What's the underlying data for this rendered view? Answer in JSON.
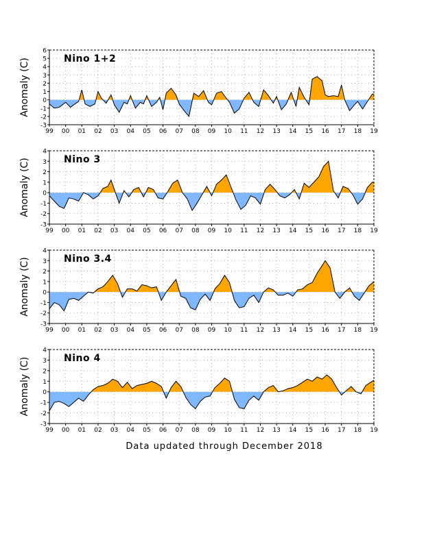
{
  "footer": "Data updated through December 2018",
  "colors": {
    "positive": "#ffa500",
    "negative": "#80b8ff",
    "line": "#000000",
    "grid": "#9a9a9a"
  },
  "chart_data": [
    {
      "type": "area",
      "title": "Nino 1+2",
      "ylabel": "Anomaly (C)",
      "xlabel": "",
      "ylim": [
        -3,
        6
      ],
      "yticks": [
        -3,
        -2,
        -1,
        0,
        1,
        2,
        3,
        4,
        5,
        6
      ],
      "xlim": [
        1999,
        2019
      ],
      "xticks": [
        "99",
        "00",
        "01",
        "02",
        "03",
        "04",
        "05",
        "06",
        "07",
        "08",
        "09",
        "10",
        "11",
        "12",
        "13",
        "14",
        "15",
        "16",
        "17",
        "18",
        "19"
      ],
      "grid": true,
      "x": [
        1999.0,
        1999.3,
        1999.6,
        2000.0,
        2000.3,
        2000.5,
        2000.8,
        2001.0,
        2001.2,
        2001.5,
        2001.8,
        2002.0,
        2002.2,
        2002.5,
        2002.8,
        2003.0,
        2003.3,
        2003.6,
        2003.8,
        2004.0,
        2004.3,
        2004.6,
        2004.8,
        2005.0,
        2005.3,
        2005.6,
        2005.8,
        2006.0,
        2006.2,
        2006.5,
        2006.8,
        2007.0,
        2007.3,
        2007.6,
        2007.9,
        2008.2,
        2008.5,
        2008.8,
        2009.0,
        2009.3,
        2009.6,
        2009.9,
        2010.1,
        2010.4,
        2010.7,
        2011.0,
        2011.3,
        2011.6,
        2011.9,
        2012.2,
        2012.5,
        2012.8,
        2013.0,
        2013.3,
        2013.6,
        2013.9,
        2014.2,
        2014.4,
        2014.7,
        2015.0,
        2015.2,
        2015.5,
        2015.8,
        2016.0,
        2016.2,
        2016.5,
        2016.8,
        2017.0,
        2017.2,
        2017.5,
        2017.8,
        2018.0,
        2018.3,
        2018.6,
        2018.9,
        2019.0
      ],
      "values": [
        -0.5,
        -1.0,
        -0.9,
        -0.3,
        -0.9,
        -0.6,
        -0.2,
        1.2,
        -0.5,
        -0.8,
        -0.5,
        1.0,
        0.2,
        -0.4,
        0.6,
        -0.6,
        -1.5,
        -0.3,
        -0.5,
        0.5,
        -1.0,
        -0.3,
        -0.5,
        0.5,
        -0.8,
        -0.3,
        0.3,
        -1.2,
        0.8,
        1.4,
        0.6,
        -0.5,
        -1.3,
        -2.0,
        0.8,
        0.4,
        1.1,
        -0.3,
        -0.6,
        0.8,
        1.0,
        0.2,
        -0.3,
        -1.6,
        -1.1,
        0.2,
        0.9,
        -0.3,
        -0.8,
        1.2,
        0.5,
        -0.4,
        0.4,
        -1.2,
        -0.5,
        0.9,
        -0.8,
        1.5,
        0.3,
        -0.6,
        2.5,
        2.8,
        2.3,
        0.6,
        0.4,
        0.5,
        0.4,
        1.8,
        0.0,
        -1.3,
        -0.6,
        -0.2,
        -1.1,
        -0.2,
        0.7,
        0.7
      ]
    },
    {
      "type": "area",
      "title": "Nino 3",
      "ylabel": "Anomaly (C)",
      "xlabel": "",
      "ylim": [
        -3,
        4
      ],
      "yticks": [
        -3,
        -2,
        -1,
        0,
        1,
        2,
        3,
        4
      ],
      "xlim": [
        1999,
        2019
      ],
      "xticks": [
        "99",
        "00",
        "01",
        "02",
        "03",
        "04",
        "05",
        "06",
        "07",
        "08",
        "09",
        "10",
        "11",
        "12",
        "13",
        "14",
        "15",
        "16",
        "17",
        "18",
        "19"
      ],
      "grid": true,
      "x": [
        1999.0,
        1999.3,
        1999.6,
        1999.9,
        2000.2,
        2000.5,
        2000.8,
        2001.1,
        2001.4,
        2001.7,
        2002.0,
        2002.3,
        2002.6,
        2002.8,
        2003.0,
        2003.3,
        2003.6,
        2003.9,
        2004.2,
        2004.5,
        2004.8,
        2005.1,
        2005.4,
        2005.7,
        2006.0,
        2006.3,
        2006.6,
        2006.9,
        2007.2,
        2007.5,
        2007.8,
        2008.1,
        2008.4,
        2008.7,
        2009.0,
        2009.3,
        2009.6,
        2009.9,
        2010.2,
        2010.5,
        2010.8,
        2011.1,
        2011.4,
        2011.7,
        2012.0,
        2012.3,
        2012.6,
        2012.9,
        2013.2,
        2013.5,
        2013.8,
        2014.1,
        2014.4,
        2014.7,
        2015.0,
        2015.3,
        2015.6,
        2015.9,
        2016.2,
        2016.5,
        2016.8,
        2017.1,
        2017.4,
        2017.7,
        2018.0,
        2018.3,
        2018.6,
        2018.9,
        2019.0
      ],
      "values": [
        -0.3,
        -0.8,
        -1.3,
        -1.5,
        -0.5,
        -0.6,
        -0.8,
        0.0,
        -0.2,
        -0.6,
        -0.3,
        0.4,
        0.6,
        1.2,
        0.3,
        -1.0,
        0.2,
        -0.4,
        0.3,
        0.5,
        -0.4,
        0.5,
        0.3,
        -0.5,
        -0.6,
        0.1,
        0.9,
        1.2,
        0.0,
        -0.6,
        -1.7,
        -1.0,
        -0.2,
        0.6,
        -0.3,
        0.8,
        1.2,
        1.7,
        0.5,
        -0.7,
        -1.6,
        -1.2,
        -0.3,
        -0.5,
        -1.1,
        0.3,
        0.8,
        0.3,
        -0.3,
        -0.5,
        -0.2,
        0.3,
        -0.6,
        0.9,
        0.5,
        1.0,
        1.5,
        2.5,
        3.0,
        0.2,
        -0.5,
        0.6,
        0.4,
        -0.2,
        -1.1,
        -0.6,
        0.5,
        1.0,
        1.0
      ]
    },
    {
      "type": "area",
      "title": "Nino 3.4",
      "ylabel": "Anomaly (C)",
      "xlabel": "",
      "ylim": [
        -3,
        4
      ],
      "yticks": [
        -3,
        -2,
        -1,
        0,
        1,
        2,
        3,
        4
      ],
      "xlim": [
        1999,
        2019
      ],
      "xticks": [
        "99",
        "00",
        "01",
        "02",
        "03",
        "04",
        "05",
        "06",
        "07",
        "08",
        "09",
        "10",
        "11",
        "12",
        "13",
        "14",
        "15",
        "16",
        "17",
        "18",
        "19"
      ],
      "grid": true,
      "x": [
        1999.0,
        1999.3,
        1999.6,
        1999.9,
        2000.2,
        2000.5,
        2000.8,
        2001.1,
        2001.4,
        2001.7,
        2002.0,
        2002.3,
        2002.6,
        2002.9,
        2003.2,
        2003.5,
        2003.8,
        2004.1,
        2004.4,
        2004.7,
        2005.0,
        2005.3,
        2005.6,
        2005.9,
        2006.2,
        2006.5,
        2006.8,
        2007.1,
        2007.4,
        2007.7,
        2008.0,
        2008.3,
        2008.6,
        2008.9,
        2009.2,
        2009.5,
        2009.8,
        2010.1,
        2010.4,
        2010.7,
        2011.0,
        2011.3,
        2011.6,
        2011.9,
        2012.2,
        2012.5,
        2012.8,
        2013.1,
        2013.4,
        2013.7,
        2014.0,
        2014.3,
        2014.6,
        2014.9,
        2015.2,
        2015.5,
        2015.8,
        2016.0,
        2016.3,
        2016.6,
        2016.9,
        2017.2,
        2017.5,
        2017.8,
        2018.1,
        2018.4,
        2018.7,
        2019.0
      ],
      "values": [
        -1.6,
        -1.0,
        -1.2,
        -1.8,
        -0.7,
        -0.6,
        -0.8,
        -0.4,
        0.0,
        -0.1,
        0.3,
        0.5,
        1.0,
        1.6,
        0.8,
        -0.5,
        0.3,
        0.3,
        0.1,
        0.7,
        0.6,
        0.4,
        0.5,
        -0.8,
        0.0,
        0.6,
        1.2,
        -0.4,
        -0.6,
        -1.5,
        -1.7,
        -0.7,
        -0.2,
        -0.8,
        0.3,
        0.8,
        1.6,
        0.9,
        -0.8,
        -1.5,
        -1.4,
        -0.6,
        -0.3,
        -1.0,
        0.0,
        0.4,
        0.2,
        -0.3,
        -0.3,
        -0.1,
        -0.4,
        0.2,
        0.3,
        0.7,
        0.9,
        1.8,
        2.5,
        3.0,
        2.3,
        0.0,
        -0.6,
        0.0,
        0.4,
        -0.4,
        -0.8,
        -0.1,
        0.6,
        1.0
      ]
    },
    {
      "type": "area",
      "title": "Nino 4",
      "ylabel": "Anomaly (C)",
      "xlabel": "",
      "ylim": [
        -3,
        4
      ],
      "yticks": [
        -3,
        -2,
        -1,
        0,
        1,
        2,
        3,
        4
      ],
      "xlim": [
        1999,
        2019
      ],
      "xticks": [
        "99",
        "00",
        "01",
        "02",
        "03",
        "04",
        "05",
        "06",
        "07",
        "08",
        "09",
        "10",
        "11",
        "12",
        "13",
        "14",
        "15",
        "16",
        "17",
        "18",
        "19"
      ],
      "grid": true,
      "x": [
        1999.0,
        1999.3,
        1999.6,
        1999.9,
        2000.2,
        2000.5,
        2000.8,
        2001.1,
        2001.4,
        2001.7,
        2002.0,
        2002.3,
        2002.6,
        2002.9,
        2003.2,
        2003.5,
        2003.8,
        2004.1,
        2004.4,
        2004.7,
        2005.0,
        2005.3,
        2005.6,
        2005.9,
        2006.2,
        2006.5,
        2006.8,
        2007.1,
        2007.4,
        2007.7,
        2008.0,
        2008.3,
        2008.6,
        2008.9,
        2009.2,
        2009.5,
        2009.8,
        2010.1,
        2010.4,
        2010.7,
        2011.0,
        2011.3,
        2011.6,
        2011.9,
        2012.2,
        2012.5,
        2012.8,
        2013.1,
        2013.4,
        2013.7,
        2014.0,
        2014.3,
        2014.6,
        2014.9,
        2015.2,
        2015.5,
        2015.8,
        2016.1,
        2016.4,
        2016.7,
        2017.0,
        2017.3,
        2017.6,
        2017.9,
        2018.2,
        2018.5,
        2018.8,
        2019.0
      ],
      "values": [
        -1.8,
        -1.0,
        -0.9,
        -1.1,
        -1.4,
        -1.0,
        -0.6,
        -0.9,
        -0.3,
        0.2,
        0.5,
        0.6,
        0.8,
        1.2,
        1.0,
        0.4,
        0.9,
        0.3,
        0.6,
        0.7,
        0.8,
        1.0,
        0.8,
        0.5,
        -0.6,
        0.4,
        1.0,
        0.5,
        -0.5,
        -1.2,
        -1.6,
        -0.9,
        -0.5,
        -0.4,
        0.4,
        0.8,
        1.3,
        1.0,
        -0.7,
        -1.5,
        -1.6,
        -0.8,
        -0.4,
        -0.8,
        0.0,
        0.4,
        0.6,
        0.0,
        0.1,
        0.3,
        0.4,
        0.6,
        0.9,
        1.2,
        1.0,
        1.4,
        1.2,
        1.6,
        1.2,
        0.4,
        -0.3,
        0.1,
        0.5,
        0.0,
        -0.2,
        0.6,
        0.9,
        1.1
      ]
    }
  ]
}
